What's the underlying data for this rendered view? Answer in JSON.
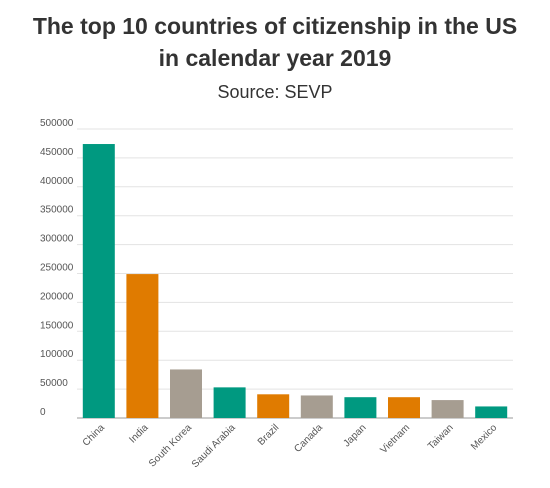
{
  "chart_data": {
    "type": "bar",
    "title": [
      "The top 10 countries of citizenship in the US",
      "in calendar year 2019"
    ],
    "subtitle": "Source: SEVP",
    "categories": [
      "China",
      "India",
      "South Korea",
      "Saudi Arabia",
      "Brazil",
      "Canada",
      "Japan",
      "Vietnam",
      "Taiwan",
      "Mexico"
    ],
    "values": [
      474000,
      249000,
      84000,
      53000,
      41000,
      39000,
      36000,
      36000,
      31000,
      20000
    ],
    "bar_colors": [
      "#009980",
      "#e07b00",
      "#a69d91",
      "#009980",
      "#e07b00",
      "#a69d91",
      "#009980",
      "#e07b00",
      "#a69d91",
      "#009980"
    ],
    "ylim": [
      0,
      500000
    ],
    "yticks": [
      0,
      50000,
      100000,
      150000,
      200000,
      250000,
      300000,
      350000,
      400000,
      450000,
      500000
    ],
    "ytick_labels": [
      "0",
      "50000",
      "100000",
      "150000",
      "200000",
      "250000",
      "300000",
      "350000",
      "400000",
      "450000",
      "500000"
    ],
    "grid": true,
    "legend": "none"
  }
}
